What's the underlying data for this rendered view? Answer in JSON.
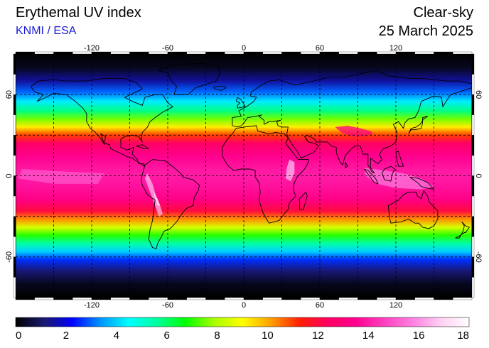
{
  "header": {
    "title": "Erythemal UV index",
    "source": "KNMI / ESA",
    "mode": "Clear-sky",
    "date": "25 March 2025"
  },
  "map": {
    "projection": "equirectangular",
    "lon_range": [
      -180,
      180
    ],
    "lat_range": [
      -90,
      90
    ],
    "grid": "dashed",
    "lon_ticks": [
      -120,
      -60,
      0,
      60,
      120
    ],
    "lat_ticks": [
      60,
      0,
      -60
    ],
    "lon_tick_labels": [
      "-120",
      "-60",
      "0",
      "60",
      "120"
    ],
    "lat_tick_labels": [
      "60",
      "0",
      "-60"
    ]
  },
  "colorbar": {
    "min": 0,
    "max": 18,
    "tick_labels": [
      "0",
      "2",
      "4",
      "6",
      "8",
      "10",
      "12",
      "14",
      "16",
      "18"
    ],
    "colors": [
      "#000000",
      "#1a1a6e",
      "#0000ff",
      "#0096ff",
      "#00ffff",
      "#00ff9c",
      "#00ff00",
      "#a8ff00",
      "#ffff00",
      "#ffa000",
      "#ff2000",
      "#ff0060",
      "#ff0090",
      "#ff40c0",
      "#ff80e0",
      "#ffd0f4",
      "#ffffff"
    ]
  },
  "uv_profile": [
    {
      "lat": 90,
      "uv": 0
    },
    {
      "lat": 80,
      "uv": 0.3
    },
    {
      "lat": 70,
      "uv": 1.5
    },
    {
      "lat": 62,
      "uv": 3.0
    },
    {
      "lat": 55,
      "uv": 4.3
    },
    {
      "lat": 48,
      "uv": 5.8
    },
    {
      "lat": 42,
      "uv": 7.5
    },
    {
      "lat": 36,
      "uv": 9.2
    },
    {
      "lat": 30,
      "uv": 11.0
    },
    {
      "lat": 24,
      "uv": 12.5
    },
    {
      "lat": 15,
      "uv": 13.4
    },
    {
      "lat": 5,
      "uv": 13.9
    },
    {
      "lat": 0,
      "uv": 14.0
    },
    {
      "lat": -8,
      "uv": 13.8
    },
    {
      "lat": -18,
      "uv": 13.2
    },
    {
      "lat": -26,
      "uv": 12.0
    },
    {
      "lat": -32,
      "uv": 10.3
    },
    {
      "lat": -38,
      "uv": 8.5
    },
    {
      "lat": -44,
      "uv": 7.0
    },
    {
      "lat": -50,
      "uv": 5.5
    },
    {
      "lat": -56,
      "uv": 4.0
    },
    {
      "lat": -62,
      "uv": 2.6
    },
    {
      "lat": -70,
      "uv": 1.2
    },
    {
      "lat": -80,
      "uv": 0.3
    },
    {
      "lat": -90,
      "uv": 0
    }
  ]
}
